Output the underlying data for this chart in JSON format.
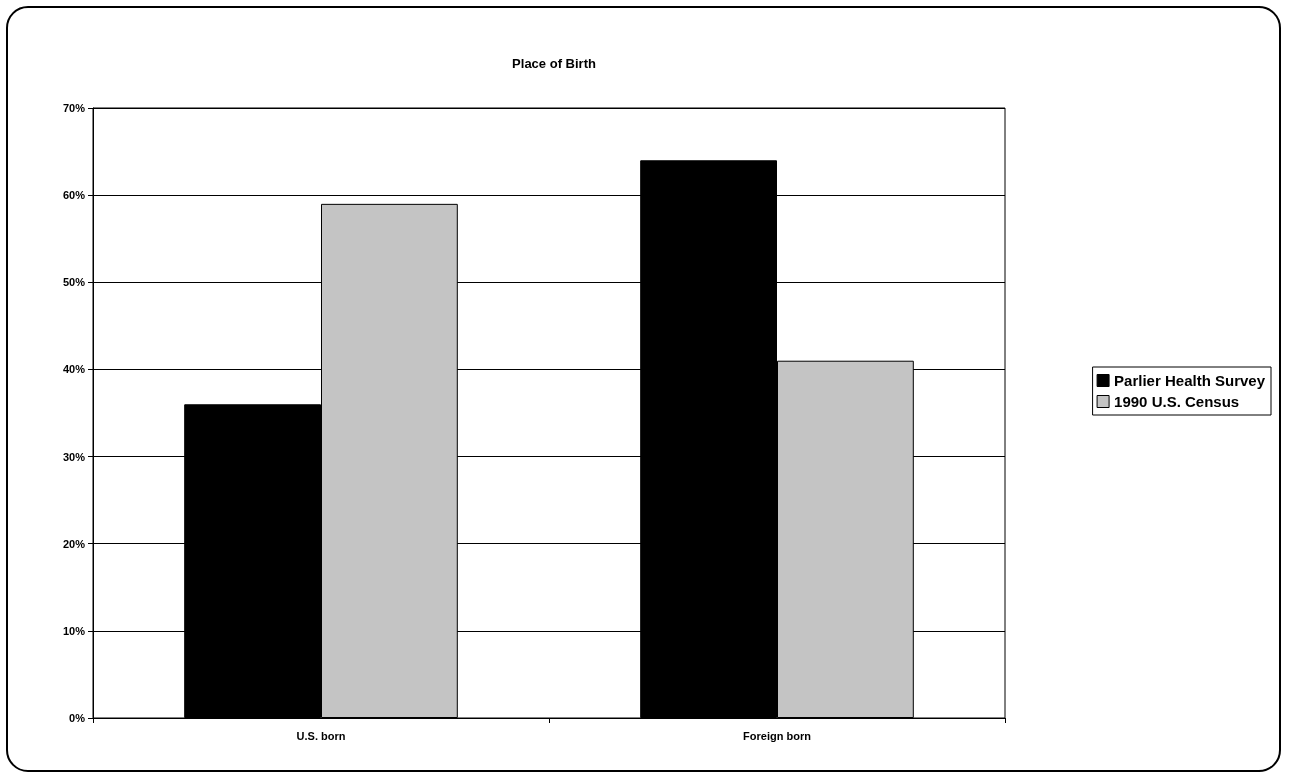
{
  "chart_data": {
    "type": "bar",
    "title": "Place of Birth",
    "categories": [
      "U.S. born",
      "Foreign born"
    ],
    "series": [
      {
        "name": "Parlier Health Survey",
        "color": "#000000",
        "values": [
          36,
          64
        ]
      },
      {
        "name": "1990 U.S. Census",
        "color": "#c4c4c4",
        "values": [
          59,
          41
        ]
      }
    ],
    "ylim": [
      0,
      70
    ],
    "yticks": [
      {
        "value": 0,
        "label": "0%"
      },
      {
        "value": 10,
        "label": "10%"
      },
      {
        "value": 20,
        "label": "20%"
      },
      {
        "value": 30,
        "label": "30%"
      },
      {
        "value": 40,
        "label": "40%"
      },
      {
        "value": 50,
        "label": "50%"
      },
      {
        "value": 60,
        "label": "60%"
      },
      {
        "value": 70,
        "label": "70%"
      }
    ],
    "grid": "y",
    "legend": "right"
  }
}
